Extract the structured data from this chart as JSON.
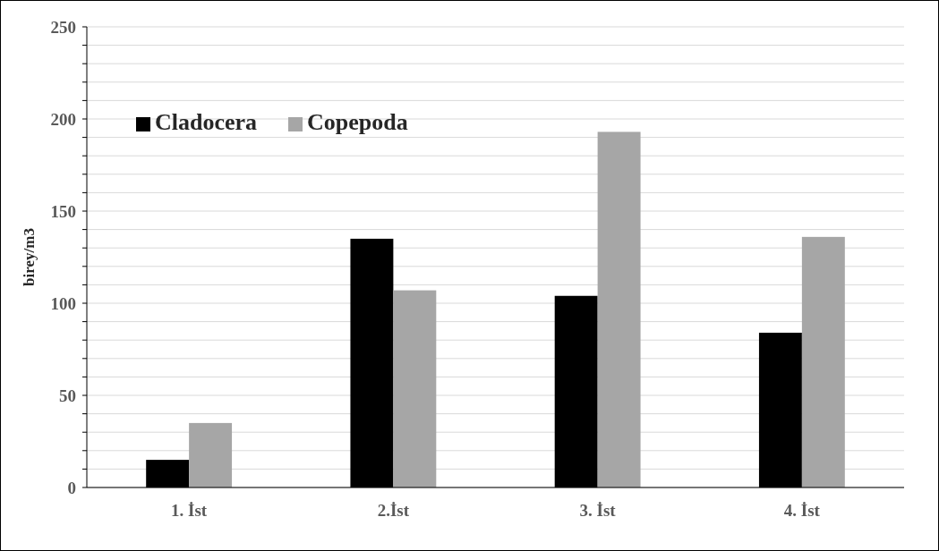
{
  "chart_data": {
    "type": "bar",
    "ylabel": "birey/m3",
    "categories": [
      "1. İst",
      "2.İst",
      "3. İst",
      "4. İst"
    ],
    "series": [
      {
        "name": "Cladocera",
        "color": "#000000",
        "values": [
          15,
          135,
          104,
          84
        ]
      },
      {
        "name": "Copepoda",
        "color": "#a6a6a6",
        "values": [
          35,
          107,
          193,
          136
        ]
      }
    ],
    "ylim": [
      0,
      250
    ],
    "yticks": [
      0,
      {
        "value": 10,
        "label": null
      },
      {
        "value": 20,
        "label": null
      },
      {
        "value": 30,
        "label": null
      },
      {
        "value": 40,
        "label": null
      },
      50,
      {
        "value": 60,
        "label": null
      },
      {
        "value": 70,
        "label": null
      },
      {
        "value": 80,
        "label": null
      },
      {
        "value": 90,
        "label": null
      },
      100,
      {
        "value": 110,
        "label": null
      },
      {
        "value": 120,
        "label": null
      },
      {
        "value": 130,
        "label": null
      },
      {
        "value": 140,
        "label": null
      },
      150,
      {
        "value": 160,
        "label": null
      },
      {
        "value": 170,
        "label": null
      },
      {
        "value": 180,
        "label": null
      },
      {
        "value": 190,
        "label": null
      },
      200,
      {
        "value": 210,
        "label": null
      },
      {
        "value": 220,
        "label": null
      },
      {
        "value": 230,
        "label": null
      },
      {
        "value": 240,
        "label": null
      },
      250
    ],
    "grid": true,
    "legend": "top left"
  }
}
